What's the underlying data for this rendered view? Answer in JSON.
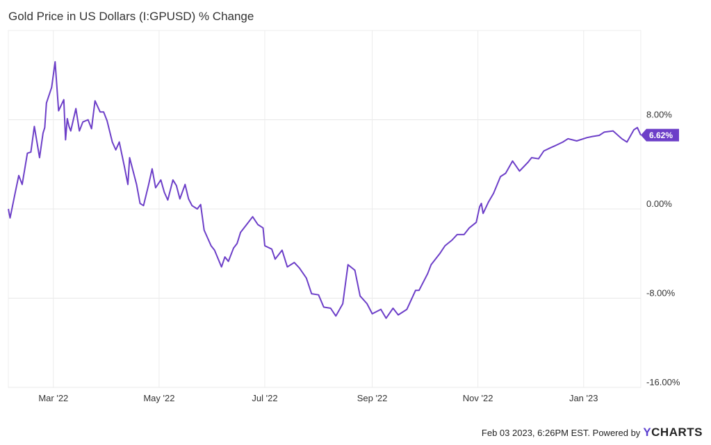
{
  "chart_data": {
    "type": "line",
    "title": "Gold Price in US Dollars (I:GPUSD) % Change",
    "xlabel": "",
    "ylabel": "",
    "ylim": [
      -16,
      16
    ],
    "xlim": [
      "2022-02-03",
      "2023-02-03"
    ],
    "yticks": [
      8,
      0,
      -8,
      -16
    ],
    "ytick_labels": [
      "8.00%",
      "0.00%",
      "-8.00%",
      "-16.00%"
    ],
    "xticks": [
      "2022-03-01",
      "2022-05-01",
      "2022-07-01",
      "2022-09-01",
      "2022-11-01",
      "2023-01-01"
    ],
    "xtick_labels": [
      "Mar '22",
      "May '22",
      "Jul '22",
      "Sep '22",
      "Nov '22",
      "Jan '23"
    ],
    "grid": true,
    "line_color": "#6c3ec8",
    "last_value_label": "6.62%",
    "series": [
      {
        "name": "",
        "x": [
          "2022-02-03",
          "2022-02-04",
          "2022-02-07",
          "2022-02-09",
          "2022-02-11",
          "2022-02-14",
          "2022-02-16",
          "2022-02-18",
          "2022-02-21",
          "2022-02-23",
          "2022-02-24",
          "2022-02-25",
          "2022-02-28",
          "2022-03-02",
          "2022-03-04",
          "2022-03-07",
          "2022-03-08",
          "2022-03-09",
          "2022-03-10",
          "2022-03-11",
          "2022-03-14",
          "2022-03-16",
          "2022-03-18",
          "2022-03-21",
          "2022-03-23",
          "2022-03-25",
          "2022-03-28",
          "2022-03-30",
          "2022-04-01",
          "2022-04-04",
          "2022-04-06",
          "2022-04-08",
          "2022-04-11",
          "2022-04-13",
          "2022-04-14",
          "2022-04-18",
          "2022-04-20",
          "2022-04-22",
          "2022-04-25",
          "2022-04-27",
          "2022-04-29",
          "2022-05-02",
          "2022-05-04",
          "2022-05-06",
          "2022-05-09",
          "2022-05-11",
          "2022-05-13",
          "2022-05-16",
          "2022-05-18",
          "2022-05-20",
          "2022-05-23",
          "2022-05-25",
          "2022-05-27",
          "2022-05-31",
          "2022-06-02",
          "2022-06-06",
          "2022-06-08",
          "2022-06-10",
          "2022-06-13",
          "2022-06-15",
          "2022-06-17",
          "2022-06-21",
          "2022-06-24",
          "2022-06-27",
          "2022-06-30",
          "2022-07-01",
          "2022-07-05",
          "2022-07-07",
          "2022-07-11",
          "2022-07-14",
          "2022-07-18",
          "2022-07-21",
          "2022-07-25",
          "2022-07-28",
          "2022-08-01",
          "2022-08-04",
          "2022-08-08",
          "2022-08-11",
          "2022-08-15",
          "2022-08-18",
          "2022-08-22",
          "2022-08-25",
          "2022-08-29",
          "2022-09-01",
          "2022-09-06",
          "2022-09-09",
          "2022-09-13",
          "2022-09-16",
          "2022-09-21",
          "2022-09-26",
          "2022-09-28",
          "2022-10-03",
          "2022-10-05",
          "2022-10-10",
          "2022-10-13",
          "2022-10-17",
          "2022-10-20",
          "2022-10-24",
          "2022-10-27",
          "2022-10-31",
          "2022-11-02",
          "2022-11-03",
          "2022-11-04",
          "2022-11-07",
          "2022-11-10",
          "2022-11-14",
          "2022-11-17",
          "2022-11-21",
          "2022-11-25",
          "2022-11-30",
          "2022-12-02",
          "2022-12-06",
          "2022-12-09",
          "2022-12-13",
          "2022-12-16",
          "2022-12-20",
          "2022-12-23",
          "2022-12-28",
          "2023-01-03",
          "2023-01-06",
          "2023-01-10",
          "2023-01-13",
          "2023-01-18",
          "2023-01-23",
          "2023-01-26",
          "2023-01-30",
          "2023-02-01",
          "2023-02-03"
        ],
        "values": [
          0.0,
          -0.8,
          1.5,
          3.0,
          2.2,
          5.0,
          5.1,
          7.4,
          4.6,
          6.8,
          7.3,
          9.5,
          10.9,
          13.2,
          8.8,
          9.8,
          6.2,
          8.1,
          7.4,
          7.0,
          9.0,
          7.0,
          7.8,
          8.0,
          7.2,
          9.7,
          8.7,
          8.7,
          7.9,
          6.0,
          5.3,
          6.0,
          3.8,
          2.2,
          4.6,
          2.2,
          0.5,
          0.3,
          2.2,
          3.6,
          1.9,
          2.6,
          1.5,
          0.8,
          2.6,
          2.1,
          0.9,
          2.2,
          0.9,
          0.3,
          0.0,
          0.4,
          -1.9,
          -3.3,
          -3.7,
          -5.2,
          -4.3,
          -4.7,
          -3.5,
          -3.1,
          -2.1,
          -1.3,
          -0.7,
          -1.4,
          -1.7,
          -3.3,
          -3.6,
          -4.5,
          -3.7,
          -5.2,
          -4.8,
          -5.3,
          -6.2,
          -7.6,
          -7.7,
          -8.8,
          -8.9,
          -9.6,
          -8.5,
          -5.0,
          -5.5,
          -7.8,
          -8.5,
          -9.4,
          -9.0,
          -9.8,
          -8.9,
          -9.5,
          -9.0,
          -7.3,
          -7.3,
          -5.8,
          -5.0,
          -4.0,
          -3.3,
          -2.8,
          -2.3,
          -2.3,
          -1.7,
          -1.2,
          0.2,
          0.5,
          -0.4,
          0.6,
          1.4,
          2.9,
          3.2,
          4.3,
          3.4,
          4.2,
          4.6,
          4.5,
          5.2,
          5.5,
          5.7,
          6.0,
          6.3,
          6.1,
          6.4,
          6.5,
          6.6,
          6.9,
          7.0,
          6.3,
          6.0,
          7.1,
          7.3,
          6.62
        ]
      }
    ]
  },
  "footer": {
    "timestamp": "Feb 03 2023, 6:26PM EST.",
    "powered_by": "Powered by",
    "brand_y": "Y",
    "brand_rest": "CHARTS"
  }
}
